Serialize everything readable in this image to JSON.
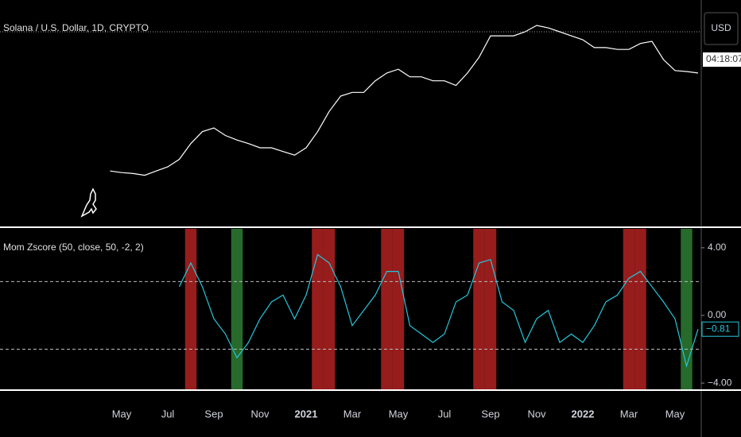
{
  "chart_data": {
    "type": "line",
    "categories": [
      null,
      null,
      "May",
      null,
      null,
      null,
      "Jul",
      null,
      null,
      null,
      "Sep",
      null,
      null,
      null,
      "Nov",
      null,
      null,
      null,
      "2021",
      null,
      null,
      null,
      "Mar",
      null,
      null,
      null,
      "May",
      null,
      null,
      null,
      "Jul",
      null,
      null,
      null,
      "Sep",
      null,
      null,
      null,
      "Nov",
      null,
      null,
      null,
      "2022",
      null,
      null,
      null,
      "Mar",
      null,
      null,
      null,
      "May",
      null,
      null
    ],
    "series": [
      {
        "name": "Solana / U.S. Dollar, 1D, CRYPTO",
        "color": "#ffffff",
        "values": [
          null,
          0.8,
          0.75,
          0.72,
          0.67,
          0.8,
          0.95,
          1.3,
          2.5,
          4.1,
          4.8,
          3.5,
          2.9,
          2.5,
          2.1,
          2.1,
          1.8,
          1.55,
          2.1,
          4.1,
          9.5,
          18,
          21,
          21,
          34,
          47,
          55,
          40,
          40,
          34,
          34,
          28,
          47,
          90,
          220,
          220,
          220,
          260,
          339,
          306,
          260,
          220,
          187,
          135,
          135,
          125,
          125,
          160,
          175,
          82,
          52,
          50,
          47
        ]
      },
      {
        "name": "Mom Zscore (50, close, 50, -2, 2)",
        "color": "#26c6da",
        "axis": "y2",
        "values": [
          null,
          null,
          null,
          null,
          null,
          null,
          null,
          1.7,
          3.1,
          1.7,
          -0.2,
          -1.1,
          -2.5,
          -1.6,
          -0.2,
          0.8,
          1.2,
          -0.2,
          1.2,
          3.6,
          3.1,
          1.7,
          -0.6,
          0.3,
          1.2,
          2.6,
          2.6,
          -0.6,
          -1.1,
          -1.6,
          -1.1,
          0.8,
          1.2,
          3.1,
          3.3,
          0.8,
          0.3,
          -1.6,
          -0.2,
          0.3,
          -1.6,
          -1.1,
          -1.6,
          -0.6,
          0.8,
          1.2,
          2.2,
          2.6,
          1.7,
          0.8,
          -0.2,
          -3,
          -0.81
        ],
        "value_labels": [
          null,
          null,
          null,
          null,
          null,
          null,
          null,
          null,
          null,
          null,
          null,
          null,
          null,
          null,
          null,
          null,
          null,
          null,
          null,
          null,
          null,
          null,
          null,
          null,
          null,
          null,
          null,
          null,
          null,
          null,
          null,
          null,
          null,
          null,
          null,
          null,
          null,
          null,
          null,
          null,
          null,
          null,
          null,
          null,
          null,
          null,
          null,
          null,
          null,
          null,
          null,
          null,
          "−0.81"
        ]
      }
    ],
    "ylim": [
      0.08,
      975
    ],
    "log_scale": true,
    "y2lim": [
      -4.37,
      5.12
    ],
    "y2ticks": [
      {
        "value": 4,
        "label": "4.00"
      },
      {
        "value": 0,
        "label": "0.00"
      },
      {
        "value": -4,
        "label": "−4.00"
      }
    ],
    "y2_levels": [
      2,
      -2
    ],
    "band_colors": {
      "above": "#b22222",
      "below": "#2e7d32"
    },
    "currency": "USD",
    "countdown": "04:18:07"
  }
}
